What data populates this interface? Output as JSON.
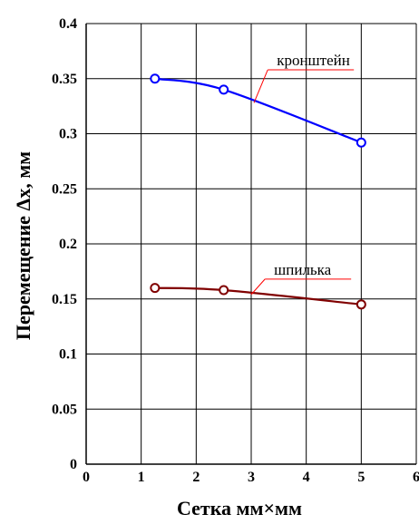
{
  "chart_data": {
    "type": "line",
    "xlabel": "Сетка мм×мм",
    "ylabel": "Перемещение Δx, мм",
    "xlim": [
      0,
      6
    ],
    "ylim": [
      0,
      0.4
    ],
    "x_ticks": [
      "0",
      "1",
      "2",
      "3",
      "4",
      "5",
      "6"
    ],
    "y_ticks": [
      "0",
      "0.05",
      "0.1",
      "0.15",
      "0.2",
      "0.25",
      "0.3",
      "0.35",
      "0.4"
    ],
    "grid": true,
    "series": [
      {
        "name": "кронштейн",
        "color": "#0000ff",
        "x": [
          1.25,
          2.5,
          5
        ],
        "y": [
          0.35,
          0.34,
          0.292
        ]
      },
      {
        "name": "шпилька",
        "color": "#800000",
        "x": [
          1.25,
          2.5,
          5
        ],
        "y": [
          0.16,
          0.158,
          0.145
        ]
      }
    ],
    "annotation_color": "#ff0000"
  }
}
